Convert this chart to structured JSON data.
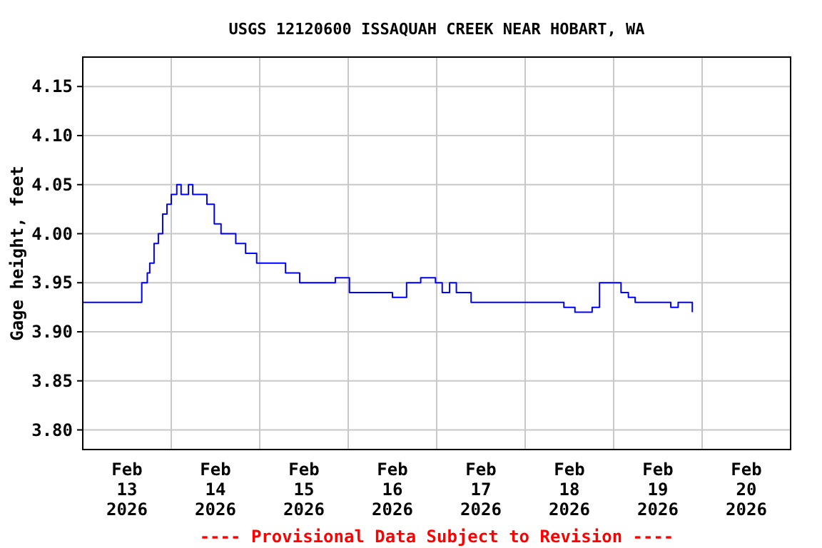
{
  "chart_data": {
    "type": "step",
    "title": "USGS 12120600 ISSAQUAH CREEK NEAR HOBART, WA",
    "ylabel": "Gage height, feet",
    "annotations": [
      "---- Provisional Data Subject to Revision ----"
    ],
    "xlim": [
      "2026-02-13T00:00",
      "2026-02-21T00:00"
    ],
    "ylim": [
      3.78,
      4.18
    ],
    "yticks": [
      {
        "value": 3.8,
        "label": "3.80"
      },
      {
        "value": 3.85,
        "label": "3.85"
      },
      {
        "value": 3.9,
        "label": "3.90"
      },
      {
        "value": 3.95,
        "label": "3.95"
      },
      {
        "value": 4.0,
        "label": "4.00"
      },
      {
        "value": 4.05,
        "label": "4.05"
      },
      {
        "value": 4.1,
        "label": "4.10"
      },
      {
        "value": 4.15,
        "label": "4.15"
      }
    ],
    "xticks": [
      {
        "value": "2026-02-13T12:00",
        "label": "Feb\n13\n2026"
      },
      {
        "value": "2026-02-14T12:00",
        "label": "Feb\n14\n2026"
      },
      {
        "value": "2026-02-15T12:00",
        "label": "Feb\n15\n2026"
      },
      {
        "value": "2026-02-16T12:00",
        "label": "Feb\n16\n2026"
      },
      {
        "value": "2026-02-17T12:00",
        "label": "Feb\n17\n2026"
      },
      {
        "value": "2026-02-18T12:00",
        "label": "Feb\n18\n2026"
      },
      {
        "value": "2026-02-19T12:00",
        "label": "Feb\n19\n2026"
      },
      {
        "value": "2026-02-20T12:00",
        "label": "Feb\n20\n2026"
      },
      {
        "value": "2026-02-14T00:00",
        "label": null
      },
      {
        "value": "2026-02-15T00:00",
        "label": null
      },
      {
        "value": "2026-02-16T00:00",
        "label": null
      },
      {
        "value": "2026-02-17T00:00",
        "label": null
      },
      {
        "value": "2026-02-18T00:00",
        "label": null
      },
      {
        "value": "2026-02-19T00:00",
        "label": null
      },
      {
        "value": "2026-02-20T00:00",
        "label": null
      }
    ],
    "grid": true,
    "x": [
      "2026-02-13T00:00",
      "2026-02-13T04:40",
      "2026-02-13T08:30",
      "2026-02-13T15:00",
      "2026-02-13T16:00",
      "2026-02-13T17:30",
      "2026-02-13T18:10",
      "2026-02-13T19:20",
      "2026-02-13T20:30",
      "2026-02-13T21:40",
      "2026-02-13T22:50",
      "2026-02-14T00:00",
      "2026-02-14T01:30",
      "2026-02-14T02:40",
      "2026-02-14T04:40",
      "2026-02-14T05:50",
      "2026-02-14T07:40",
      "2026-02-14T09:40",
      "2026-02-14T11:40",
      "2026-02-14T13:30",
      "2026-02-14T15:30",
      "2026-02-14T17:30",
      "2026-02-14T20:10",
      "2026-02-14T23:10",
      "2026-02-15T02:20",
      "2026-02-15T07:00",
      "2026-02-15T10:50",
      "2026-02-15T14:40",
      "2026-02-15T20:30",
      "2026-02-16T00:20",
      "2026-02-16T06:10",
      "2026-02-16T10:00",
      "2026-02-16T12:00",
      "2026-02-16T15:50",
      "2026-02-16T19:40",
      "2026-02-16T23:40",
      "2026-02-17T01:30",
      "2026-02-17T03:30",
      "2026-02-17T05:20",
      "2026-02-17T09:20",
      "2026-02-17T15:10",
      "2026-02-17T21:00",
      "2026-02-18T04:40",
      "2026-02-18T10:30",
      "2026-02-18T13:30",
      "2026-02-18T16:20",
      "2026-02-18T18:10",
      "2026-02-18T20:10",
      "2026-02-19T00:00",
      "2026-02-19T02:00",
      "2026-02-19T04:00",
      "2026-02-19T05:50",
      "2026-02-19T11:40",
      "2026-02-19T15:30",
      "2026-02-19T17:30",
      "2026-02-19T21:20"
    ],
    "series": [
      {
        "color": "#0000ff",
        "values": [
          3.93,
          3.93,
          3.93,
          3.93,
          3.95,
          3.96,
          3.97,
          3.99,
          4.0,
          4.02,
          4.03,
          4.04,
          4.05,
          4.04,
          4.05,
          4.04,
          4.04,
          4.03,
          4.01,
          4.0,
          4.0,
          3.99,
          3.98,
          3.97,
          3.97,
          3.96,
          3.95,
          3.95,
          3.955,
          3.94,
          3.94,
          3.94,
          3.935,
          3.95,
          3.955,
          3.95,
          3.94,
          3.95,
          3.94,
          3.93,
          3.93,
          3.93,
          3.93,
          3.925,
          3.92,
          3.92,
          3.925,
          3.95,
          3.95,
          3.94,
          3.935,
          3.93,
          3.93,
          3.925,
          3.93,
          3.92
        ]
      }
    ]
  }
}
